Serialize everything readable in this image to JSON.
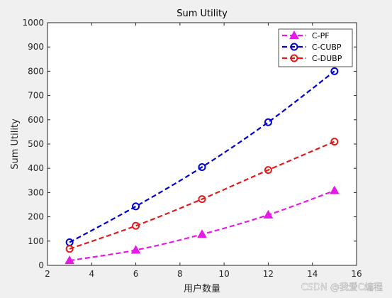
{
  "chart_data": {
    "type": "line",
    "title": "Sum Utility",
    "xlabel": "用户数量",
    "ylabel": "Sum Utility",
    "xlim": [
      2,
      16
    ],
    "ylim": [
      0,
      1000
    ],
    "x_ticks": [
      "2",
      "4",
      "6",
      "8",
      "10",
      "12",
      "14",
      "16"
    ],
    "y_ticks": [
      "0",
      "100",
      "200",
      "300",
      "400",
      "500",
      "600",
      "700",
      "800",
      "900",
      "1000"
    ],
    "grid": false,
    "legend_position": "top-right",
    "x": [
      3,
      6,
      9,
      12,
      15
    ],
    "series": [
      {
        "name": "C-PF",
        "values": [
          20,
          63,
          128,
          208,
          308
        ],
        "color": "#e619e6",
        "marker": "triangle"
      },
      {
        "name": "C-CUBP",
        "values": [
          95,
          243,
          405,
          590,
          800
        ],
        "color": "#0000cc",
        "marker": "circle"
      },
      {
        "name": "C-DUBP",
        "values": [
          68,
          163,
          273,
          393,
          510
        ],
        "color": "#e01a1a",
        "marker": "circle"
      }
    ]
  },
  "watermark": "CSDN @我爱C编程"
}
